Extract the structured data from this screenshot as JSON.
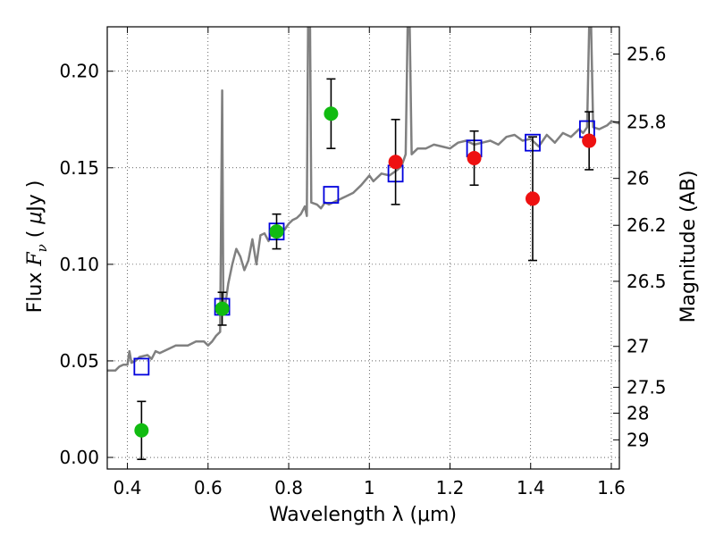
{
  "chart_data": {
    "type": "scatter",
    "title": "",
    "xlabel": "Wavelength  λ (μm)",
    "ylabel": "Flux  F_ν  ( μJy )",
    "y2label": "Magnitude (AB)",
    "xlim": [
      0.35,
      1.62
    ],
    "ylim": [
      -0.006,
      0.223
    ],
    "grid": true,
    "x_ticks": [
      0.4,
      0.6,
      0.8,
      1.0,
      1.2,
      1.4,
      1.6
    ],
    "x_tick_labels": [
      "0.4",
      "0.6",
      "0.8",
      "1",
      "1.2",
      "1.4",
      "1.6"
    ],
    "y_ticks": [
      0.0,
      0.05,
      0.1,
      0.15,
      0.2
    ],
    "y_tick_labels": [
      "0.00",
      "0.05",
      "0.10",
      "0.15",
      "0.20"
    ],
    "y2_ticks": [
      {
        "label": "25.6",
        "flux": 0.2089
      },
      {
        "label": "25.8",
        "flux": 0.1738
      },
      {
        "label": "26",
        "flux": 0.1445
      },
      {
        "label": "26.2",
        "flux": 0.1202
      },
      {
        "label": "26.5",
        "flux": 0.0912
      },
      {
        "label": "27",
        "flux": 0.0575
      },
      {
        "label": "27.5",
        "flux": 0.0363
      },
      {
        "label": "28",
        "flux": 0.0229
      },
      {
        "label": "29",
        "flux": 0.0091
      }
    ],
    "series": [
      {
        "kind": "line",
        "color": "#808080",
        "points": [
          [
            0.35,
            0.045
          ],
          [
            0.37,
            0.045
          ],
          [
            0.38,
            0.047
          ],
          [
            0.39,
            0.048
          ],
          [
            0.4,
            0.048
          ],
          [
            0.405,
            0.055
          ],
          [
            0.41,
            0.049
          ],
          [
            0.42,
            0.05
          ],
          [
            0.43,
            0.052
          ],
          [
            0.45,
            0.053
          ],
          [
            0.46,
            0.051
          ],
          [
            0.47,
            0.055
          ],
          [
            0.48,
            0.054
          ],
          [
            0.5,
            0.056
          ],
          [
            0.52,
            0.058
          ],
          [
            0.55,
            0.058
          ],
          [
            0.57,
            0.06
          ],
          [
            0.59,
            0.06
          ],
          [
            0.6,
            0.058
          ],
          [
            0.61,
            0.06
          ],
          [
            0.62,
            0.063
          ],
          [
            0.63,
            0.065
          ],
          [
            0.635,
            0.19
          ],
          [
            0.638,
            0.075
          ],
          [
            0.64,
            0.075
          ],
          [
            0.65,
            0.09
          ],
          [
            0.66,
            0.1
          ],
          [
            0.67,
            0.108
          ],
          [
            0.68,
            0.104
          ],
          [
            0.69,
            0.097
          ],
          [
            0.7,
            0.102
          ],
          [
            0.71,
            0.113
          ],
          [
            0.72,
            0.1
          ],
          [
            0.73,
            0.115
          ],
          [
            0.74,
            0.116
          ],
          [
            0.75,
            0.112
          ],
          [
            0.76,
            0.118
          ],
          [
            0.77,
            0.114
          ],
          [
            0.78,
            0.117
          ],
          [
            0.79,
            0.118
          ],
          [
            0.8,
            0.121
          ],
          [
            0.81,
            0.123
          ],
          [
            0.82,
            0.124
          ],
          [
            0.83,
            0.126
          ],
          [
            0.84,
            0.13
          ],
          [
            0.845,
            0.125
          ],
          [
            0.848,
            0.223
          ],
          [
            0.853,
            0.223
          ],
          [
            0.856,
            0.132
          ],
          [
            0.87,
            0.131
          ],
          [
            0.88,
            0.129
          ],
          [
            0.89,
            0.132
          ],
          [
            0.9,
            0.131
          ],
          [
            0.92,
            0.133
          ],
          [
            0.94,
            0.135
          ],
          [
            0.96,
            0.137
          ],
          [
            0.98,
            0.141
          ],
          [
            1.0,
            0.146
          ],
          [
            1.01,
            0.143
          ],
          [
            1.03,
            0.147
          ],
          [
            1.05,
            0.146
          ],
          [
            1.07,
            0.149
          ],
          [
            1.08,
            0.151
          ],
          [
            1.09,
            0.157
          ],
          [
            1.095,
            0.223
          ],
          [
            1.1,
            0.223
          ],
          [
            1.105,
            0.157
          ],
          [
            1.12,
            0.16
          ],
          [
            1.14,
            0.16
          ],
          [
            1.16,
            0.162
          ],
          [
            1.18,
            0.161
          ],
          [
            1.2,
            0.16
          ],
          [
            1.22,
            0.163
          ],
          [
            1.24,
            0.164
          ],
          [
            1.26,
            0.162
          ],
          [
            1.28,
            0.163
          ],
          [
            1.3,
            0.164
          ],
          [
            1.32,
            0.162
          ],
          [
            1.34,
            0.166
          ],
          [
            1.36,
            0.167
          ],
          [
            1.38,
            0.164
          ],
          [
            1.4,
            0.165
          ],
          [
            1.42,
            0.161
          ],
          [
            1.44,
            0.167
          ],
          [
            1.46,
            0.163
          ],
          [
            1.48,
            0.168
          ],
          [
            1.5,
            0.166
          ],
          [
            1.52,
            0.17
          ],
          [
            1.53,
            0.168
          ],
          [
            1.54,
            0.171
          ],
          [
            1.545,
            0.223
          ],
          [
            1.55,
            0.223
          ],
          [
            1.555,
            0.171
          ],
          [
            1.57,
            0.17
          ],
          [
            1.59,
            0.172
          ],
          [
            1.6,
            0.174
          ],
          [
            1.62,
            0.173
          ]
        ]
      },
      {
        "kind": "points",
        "marker": "open-square",
        "color": "#0000dd",
        "x": [
          0.435,
          0.635,
          0.77,
          0.905,
          1.065,
          1.26,
          1.405,
          1.54
        ],
        "y": [
          0.047,
          0.078,
          0.117,
          0.136,
          0.147,
          0.16,
          0.163,
          0.17
        ]
      },
      {
        "kind": "points",
        "marker": "filled-circle",
        "color": "#11bb11",
        "x": [
          0.435,
          0.635,
          0.77,
          0.905
        ],
        "y": [
          0.014,
          0.077,
          0.117,
          0.178
        ],
        "err": [
          0.015,
          0.0085,
          0.009,
          0.018
        ]
      },
      {
        "kind": "points",
        "marker": "filled-circle",
        "color": "#ee1111",
        "x": [
          1.065,
          1.26,
          1.405,
          1.545
        ],
        "y": [
          0.153,
          0.155,
          0.134,
          0.164
        ],
        "err": [
          0.022,
          0.014,
          0.032,
          0.015
        ]
      }
    ]
  }
}
